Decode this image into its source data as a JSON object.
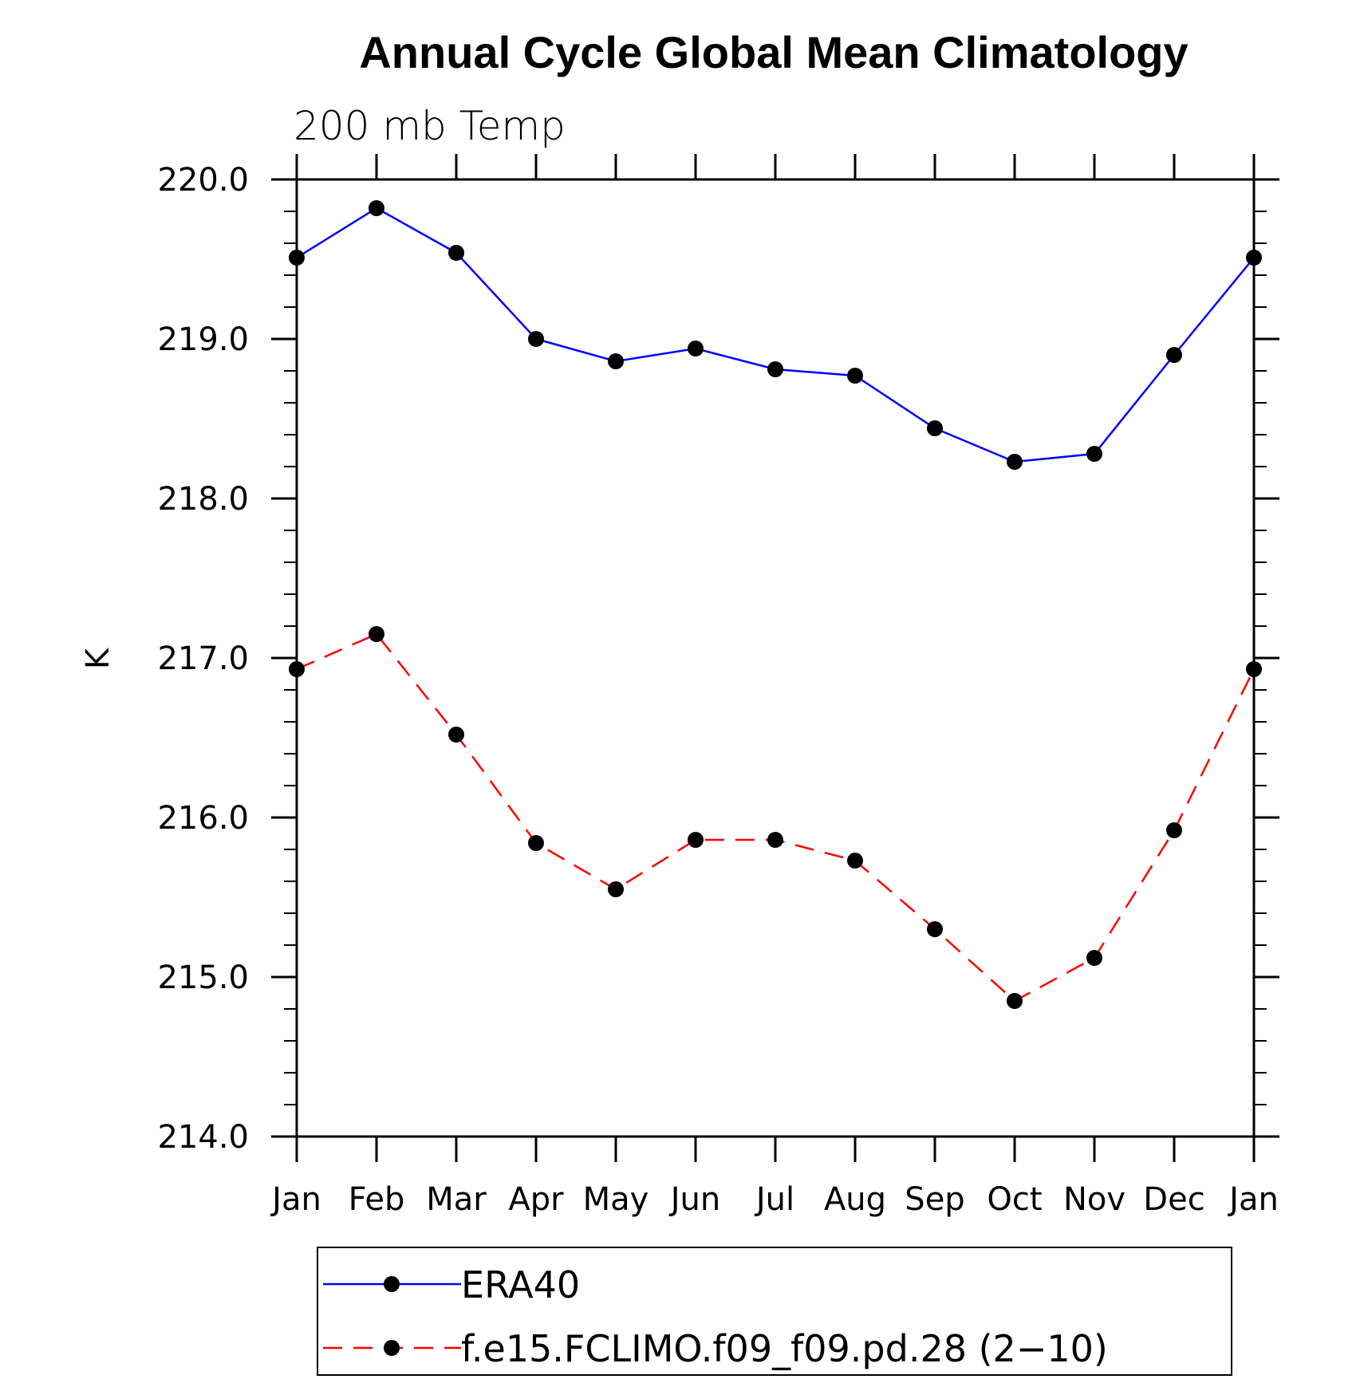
{
  "chart_data": {
    "type": "line",
    "title": "Annual Cycle Global Mean Climatology",
    "subtitle": "200 mb Temp",
    "xlabel": "",
    "ylabel": "K",
    "categories": [
      "Jan",
      "Feb",
      "Mar",
      "Apr",
      "May",
      "Jun",
      "Jul",
      "Aug",
      "Sep",
      "Oct",
      "Nov",
      "Dec",
      "Jan"
    ],
    "ylim": [
      214.0,
      220.0
    ],
    "yticks": [
      "214.0",
      "215.0",
      "216.0",
      "217.0",
      "218.0",
      "219.0",
      "220.0"
    ],
    "grid": false,
    "legend_position": "bottom",
    "series": [
      {
        "name": "ERA40",
        "color": "#0000ff",
        "dash": "solid",
        "marker": "filled-circle",
        "values": [
          219.51,
          219.82,
          219.54,
          219.0,
          218.86,
          218.94,
          218.81,
          218.77,
          218.44,
          218.23,
          218.28,
          218.9,
          219.51
        ]
      },
      {
        "name": "f.e15.FCLIMO.f09_f09.pd.28 (2−10)",
        "color": "#ff0000",
        "dash": "dashed",
        "marker": "filled-circle",
        "values": [
          216.93,
          217.15,
          216.52,
          215.84,
          215.55,
          215.86,
          215.86,
          215.73,
          215.3,
          214.85,
          215.12,
          215.92,
          216.93
        ]
      }
    ]
  }
}
